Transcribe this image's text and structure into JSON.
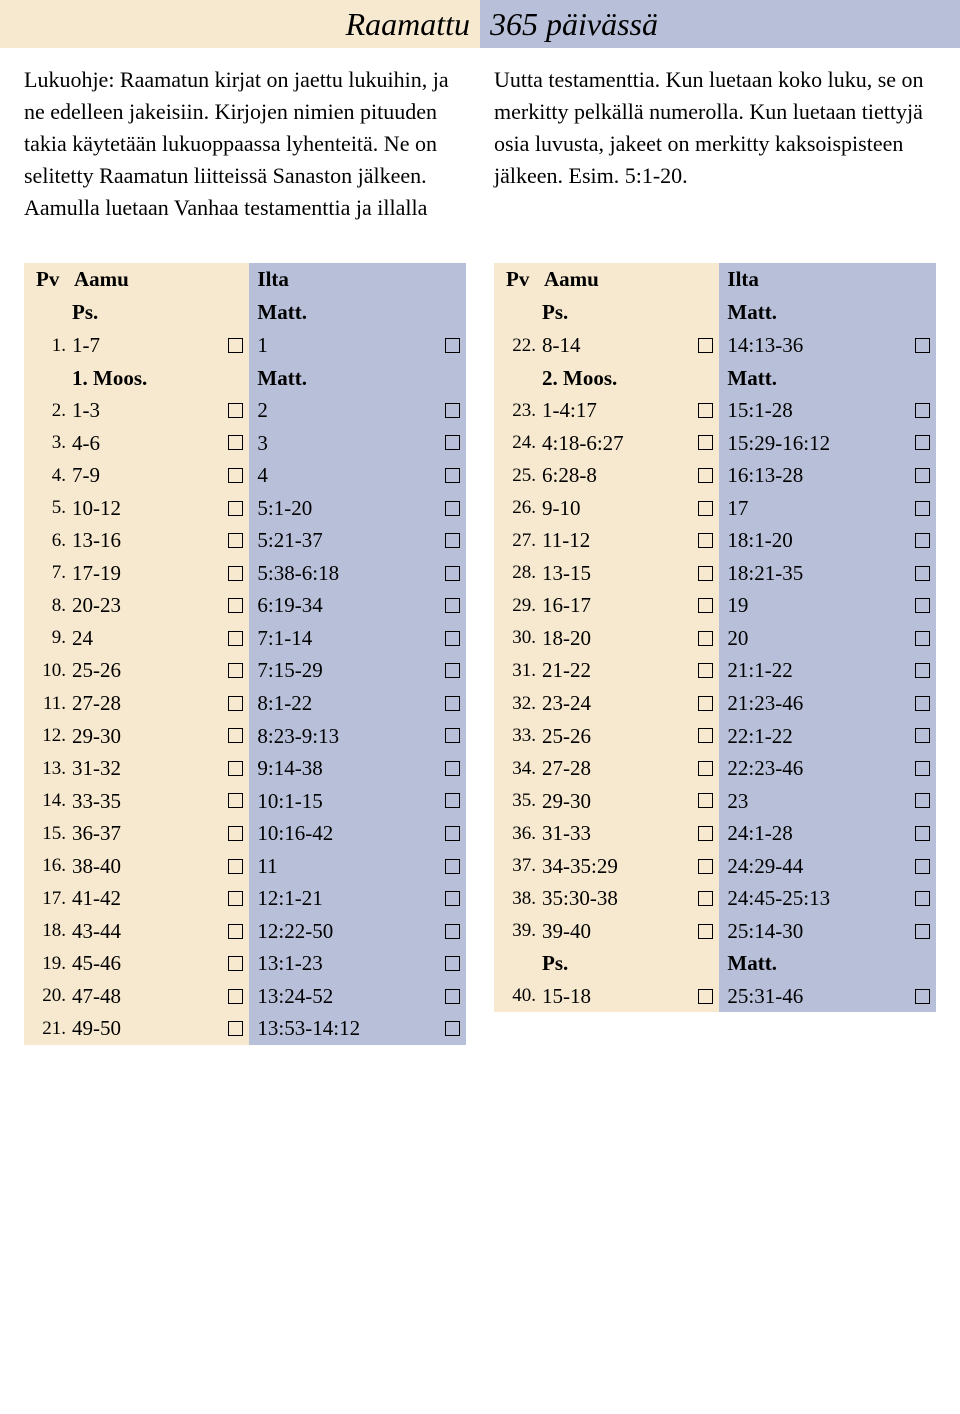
{
  "title": {
    "left": "Raamattu",
    "right": "365 päivässä"
  },
  "intro": "Lukuohje: Raamatun kirjat on jaettu lukuihin, ja ne edelleen jakeisiin. Kirjojen nimien pituuden takia käytetään lukuoppaassa lyhenteitä. Ne on selitetty Raamatun liitteissä Sanaston jälkeen. Aamulla luetaan Vanhaa testamenttia ja illalla Uutta testamenttia. Kun luetaan koko luku, se on merkitty pelkällä numerolla. Kun luetaan tiettyjä osia luvusta, jakeet on merkitty kaksoispisteen jälkeen. Esim. 5:1-20.",
  "headers": {
    "pv": "Pv",
    "aamu": "Aamu",
    "ilta": "Ilta"
  },
  "colors": {
    "aamu_bg": "#f7e9cf",
    "ilta_bg": "#b8c0d9",
    "text": "#000000",
    "page_bg": "#ffffff"
  },
  "columns": [
    {
      "rows": [
        {
          "type": "section",
          "aamu": "Ps.",
          "ilta": "Matt."
        },
        {
          "type": "day",
          "pv": "1.",
          "aamu": "1-7",
          "ilta": "1"
        },
        {
          "type": "section",
          "aamu": "1. Moos.",
          "ilta": "Matt."
        },
        {
          "type": "day",
          "pv": "2.",
          "aamu": "1-3",
          "ilta": "2"
        },
        {
          "type": "day",
          "pv": "3.",
          "aamu": "4-6",
          "ilta": "3"
        },
        {
          "type": "day",
          "pv": "4.",
          "aamu": "7-9",
          "ilta": "4"
        },
        {
          "type": "day",
          "pv": "5.",
          "aamu": "10-12",
          "ilta": "5:1-20"
        },
        {
          "type": "day",
          "pv": "6.",
          "aamu": "13-16",
          "ilta": "5:21-37"
        },
        {
          "type": "day",
          "pv": "7.",
          "aamu": "17-19",
          "ilta": "5:38-6:18"
        },
        {
          "type": "day",
          "pv": "8.",
          "aamu": "20-23",
          "ilta": "6:19-34"
        },
        {
          "type": "day",
          "pv": "9.",
          "aamu": "24",
          "ilta": "7:1-14"
        },
        {
          "type": "day",
          "pv": "10.",
          "aamu": "25-26",
          "ilta": "7:15-29"
        },
        {
          "type": "day",
          "pv": "11.",
          "aamu": "27-28",
          "ilta": "8:1-22"
        },
        {
          "type": "day",
          "pv": "12.",
          "aamu": "29-30",
          "ilta": "8:23-9:13"
        },
        {
          "type": "day",
          "pv": "13.",
          "aamu": "31-32",
          "ilta": "9:14-38"
        },
        {
          "type": "day",
          "pv": "14.",
          "aamu": "33-35",
          "ilta": "10:1-15"
        },
        {
          "type": "day",
          "pv": "15.",
          "aamu": "36-37",
          "ilta": "10:16-42"
        },
        {
          "type": "day",
          "pv": "16.",
          "aamu": "38-40",
          "ilta": "11"
        },
        {
          "type": "day",
          "pv": "17.",
          "aamu": "41-42",
          "ilta": "12:1-21"
        },
        {
          "type": "day",
          "pv": "18.",
          "aamu": "43-44",
          "ilta": "12:22-50"
        },
        {
          "type": "day",
          "pv": "19.",
          "aamu": "45-46",
          "ilta": "13:1-23"
        },
        {
          "type": "day",
          "pv": "20.",
          "aamu": "47-48",
          "ilta": "13:24-52"
        },
        {
          "type": "day",
          "pv": "21.",
          "aamu": "49-50",
          "ilta": "13:53-14:12"
        }
      ]
    },
    {
      "rows": [
        {
          "type": "section",
          "aamu": "Ps.",
          "ilta": "Matt."
        },
        {
          "type": "day",
          "pv": "22.",
          "aamu": "8-14",
          "ilta": "14:13-36"
        },
        {
          "type": "section",
          "aamu": "2. Moos.",
          "ilta": "Matt."
        },
        {
          "type": "day",
          "pv": "23.",
          "aamu": "1-4:17",
          "ilta": "15:1-28"
        },
        {
          "type": "day",
          "pv": "24.",
          "aamu": "4:18-6:27",
          "ilta": "15:29-16:12"
        },
        {
          "type": "day",
          "pv": "25.",
          "aamu": "6:28-8",
          "ilta": "16:13-28"
        },
        {
          "type": "day",
          "pv": "26.",
          "aamu": "9-10",
          "ilta": "17"
        },
        {
          "type": "day",
          "pv": "27.",
          "aamu": "11-12",
          "ilta": "18:1-20"
        },
        {
          "type": "day",
          "pv": "28.",
          "aamu": "13-15",
          "ilta": "18:21-35"
        },
        {
          "type": "day",
          "pv": "29.",
          "aamu": "16-17",
          "ilta": "19"
        },
        {
          "type": "day",
          "pv": "30.",
          "aamu": "18-20",
          "ilta": "20"
        },
        {
          "type": "day",
          "pv": "31.",
          "aamu": "21-22",
          "ilta": "21:1-22"
        },
        {
          "type": "day",
          "pv": "32.",
          "aamu": "23-24",
          "ilta": "21:23-46"
        },
        {
          "type": "day",
          "pv": "33.",
          "aamu": "25-26",
          "ilta": "22:1-22"
        },
        {
          "type": "day",
          "pv": "34.",
          "aamu": "27-28",
          "ilta": "22:23-46"
        },
        {
          "type": "day",
          "pv": "35.",
          "aamu": "29-30",
          "ilta": "23"
        },
        {
          "type": "day",
          "pv": "36.",
          "aamu": "31-33",
          "ilta": "24:1-28"
        },
        {
          "type": "day",
          "pv": "37.",
          "aamu": "34-35:29",
          "ilta": "24:29-44"
        },
        {
          "type": "day",
          "pv": "38.",
          "aamu": "35:30-38",
          "ilta": "24:45-25:13"
        },
        {
          "type": "day",
          "pv": "39.",
          "aamu": "39-40",
          "ilta": "25:14-30"
        },
        {
          "type": "section",
          "aamu": "Ps.",
          "ilta": "Matt."
        },
        {
          "type": "day",
          "pv": "40.",
          "aamu": "15-18",
          "ilta": "25:31-46"
        }
      ]
    }
  ]
}
